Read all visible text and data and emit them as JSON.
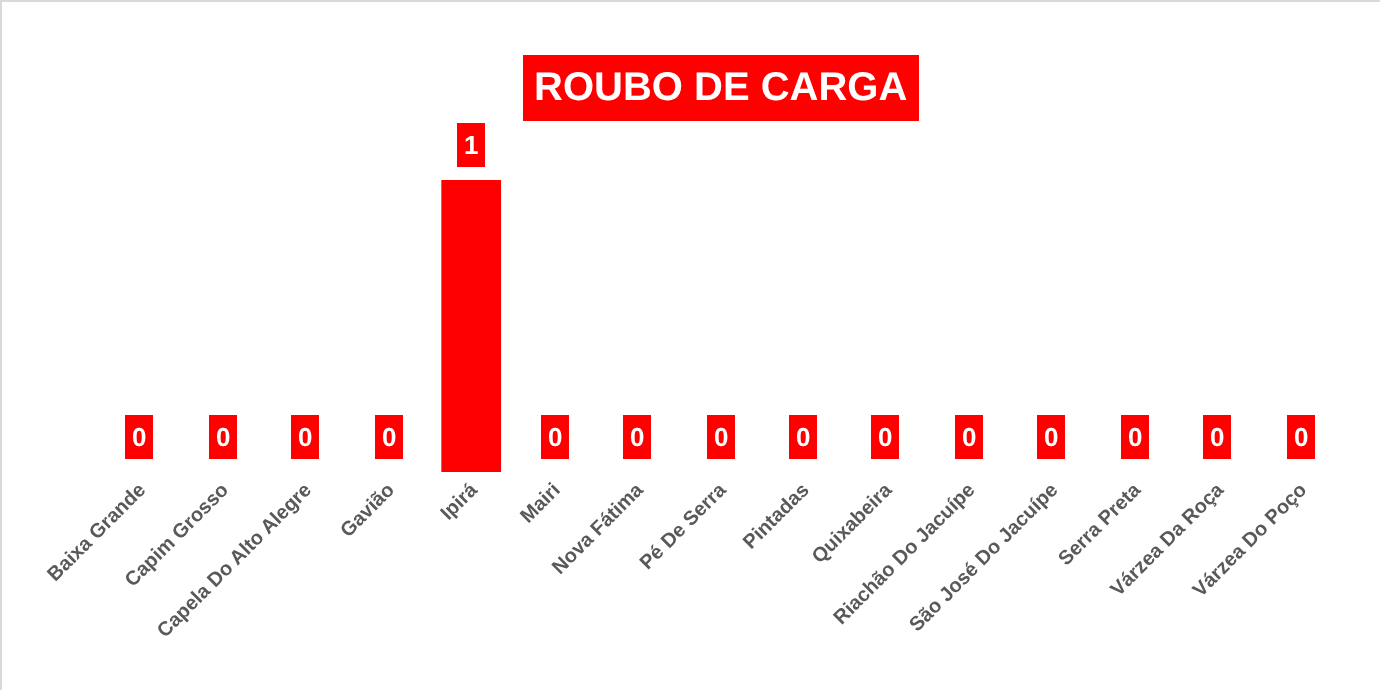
{
  "chart_data": {
    "type": "bar",
    "title": "ROUBO DE CARGA",
    "categories": [
      "Baixa Grande",
      "Capim Grosso",
      "Capela Do Alto Alegre",
      "Gavião",
      "Ipirá",
      "Mairi",
      "Nova Fátima",
      "Pé De Serra",
      "Pintadas",
      "Quixabeira",
      "Riachão Do Jacuípe",
      "São José Do Jacuípe",
      "Serra Preta",
      "Várzea Da Roça",
      "Várzea Do Poço"
    ],
    "values": [
      0,
      0,
      0,
      0,
      1,
      0,
      0,
      0,
      0,
      0,
      0,
      0,
      0,
      0,
      0
    ],
    "color": "#ff0000",
    "data_labels": true
  }
}
